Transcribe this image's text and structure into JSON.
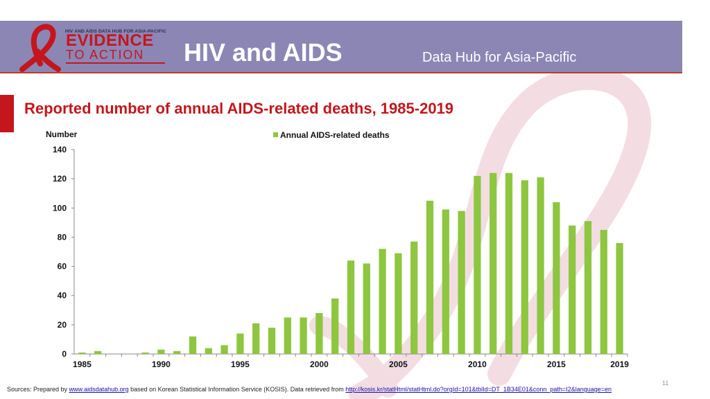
{
  "header": {
    "logo_small": "HIV AND AIDS DATA HUB FOR ASIA-PACIFIC",
    "logo_line1": "EVIDENCE",
    "logo_line2": "TO ACTION",
    "title": "HIV and AIDS",
    "subtitle": "Data Hub for Asia-Pacific"
  },
  "colors": {
    "header_band": "#8c86b5",
    "accent_red": "#c4161c",
    "bar_green": "#8dc63f"
  },
  "chart_data": {
    "type": "bar",
    "title": "Reported number of annual AIDS-related deaths, 1985-2019",
    "ylabel": "Number",
    "xlabel": "",
    "ylim": [
      0,
      140
    ],
    "yticks": [
      0,
      20,
      40,
      60,
      80,
      100,
      120,
      140
    ],
    "xtick_labels": [
      "1985",
      "1990",
      "1995",
      "2000",
      "2005",
      "2010",
      "2015",
      "2019"
    ],
    "legend_position": "top",
    "grid": false,
    "categories": [
      1985,
      1986,
      1987,
      1988,
      1989,
      1990,
      1991,
      1992,
      1993,
      1994,
      1995,
      1996,
      1997,
      1998,
      1999,
      2000,
      2001,
      2002,
      2003,
      2004,
      2005,
      2006,
      2007,
      2008,
      2009,
      2010,
      2011,
      2012,
      2013,
      2014,
      2015,
      2016,
      2017,
      2018,
      2019
    ],
    "series": [
      {
        "name": "Annual AIDS-related deaths",
        "values": [
          1,
          2,
          0,
          0,
          1,
          3,
          2,
          12,
          4,
          6,
          14,
          21,
          18,
          25,
          25,
          28,
          38,
          64,
          62,
          72,
          69,
          77,
          105,
          99,
          98,
          122,
          124,
          124,
          119,
          121,
          104,
          88,
          91,
          85,
          76
        ]
      }
    ]
  },
  "footer": {
    "prefix": "Sources: Prepared by ",
    "link1": "www.aidsdatahub.org",
    "middle": " based on Korean Statistical Information Service (KOSIS). Data retrieved from ",
    "link2": "http://kosis.kr/statHtml/statHtml.do?orgId=101&tblId=DT_1B34E01&conn_path=I2&language=en",
    "page_number": "11"
  }
}
